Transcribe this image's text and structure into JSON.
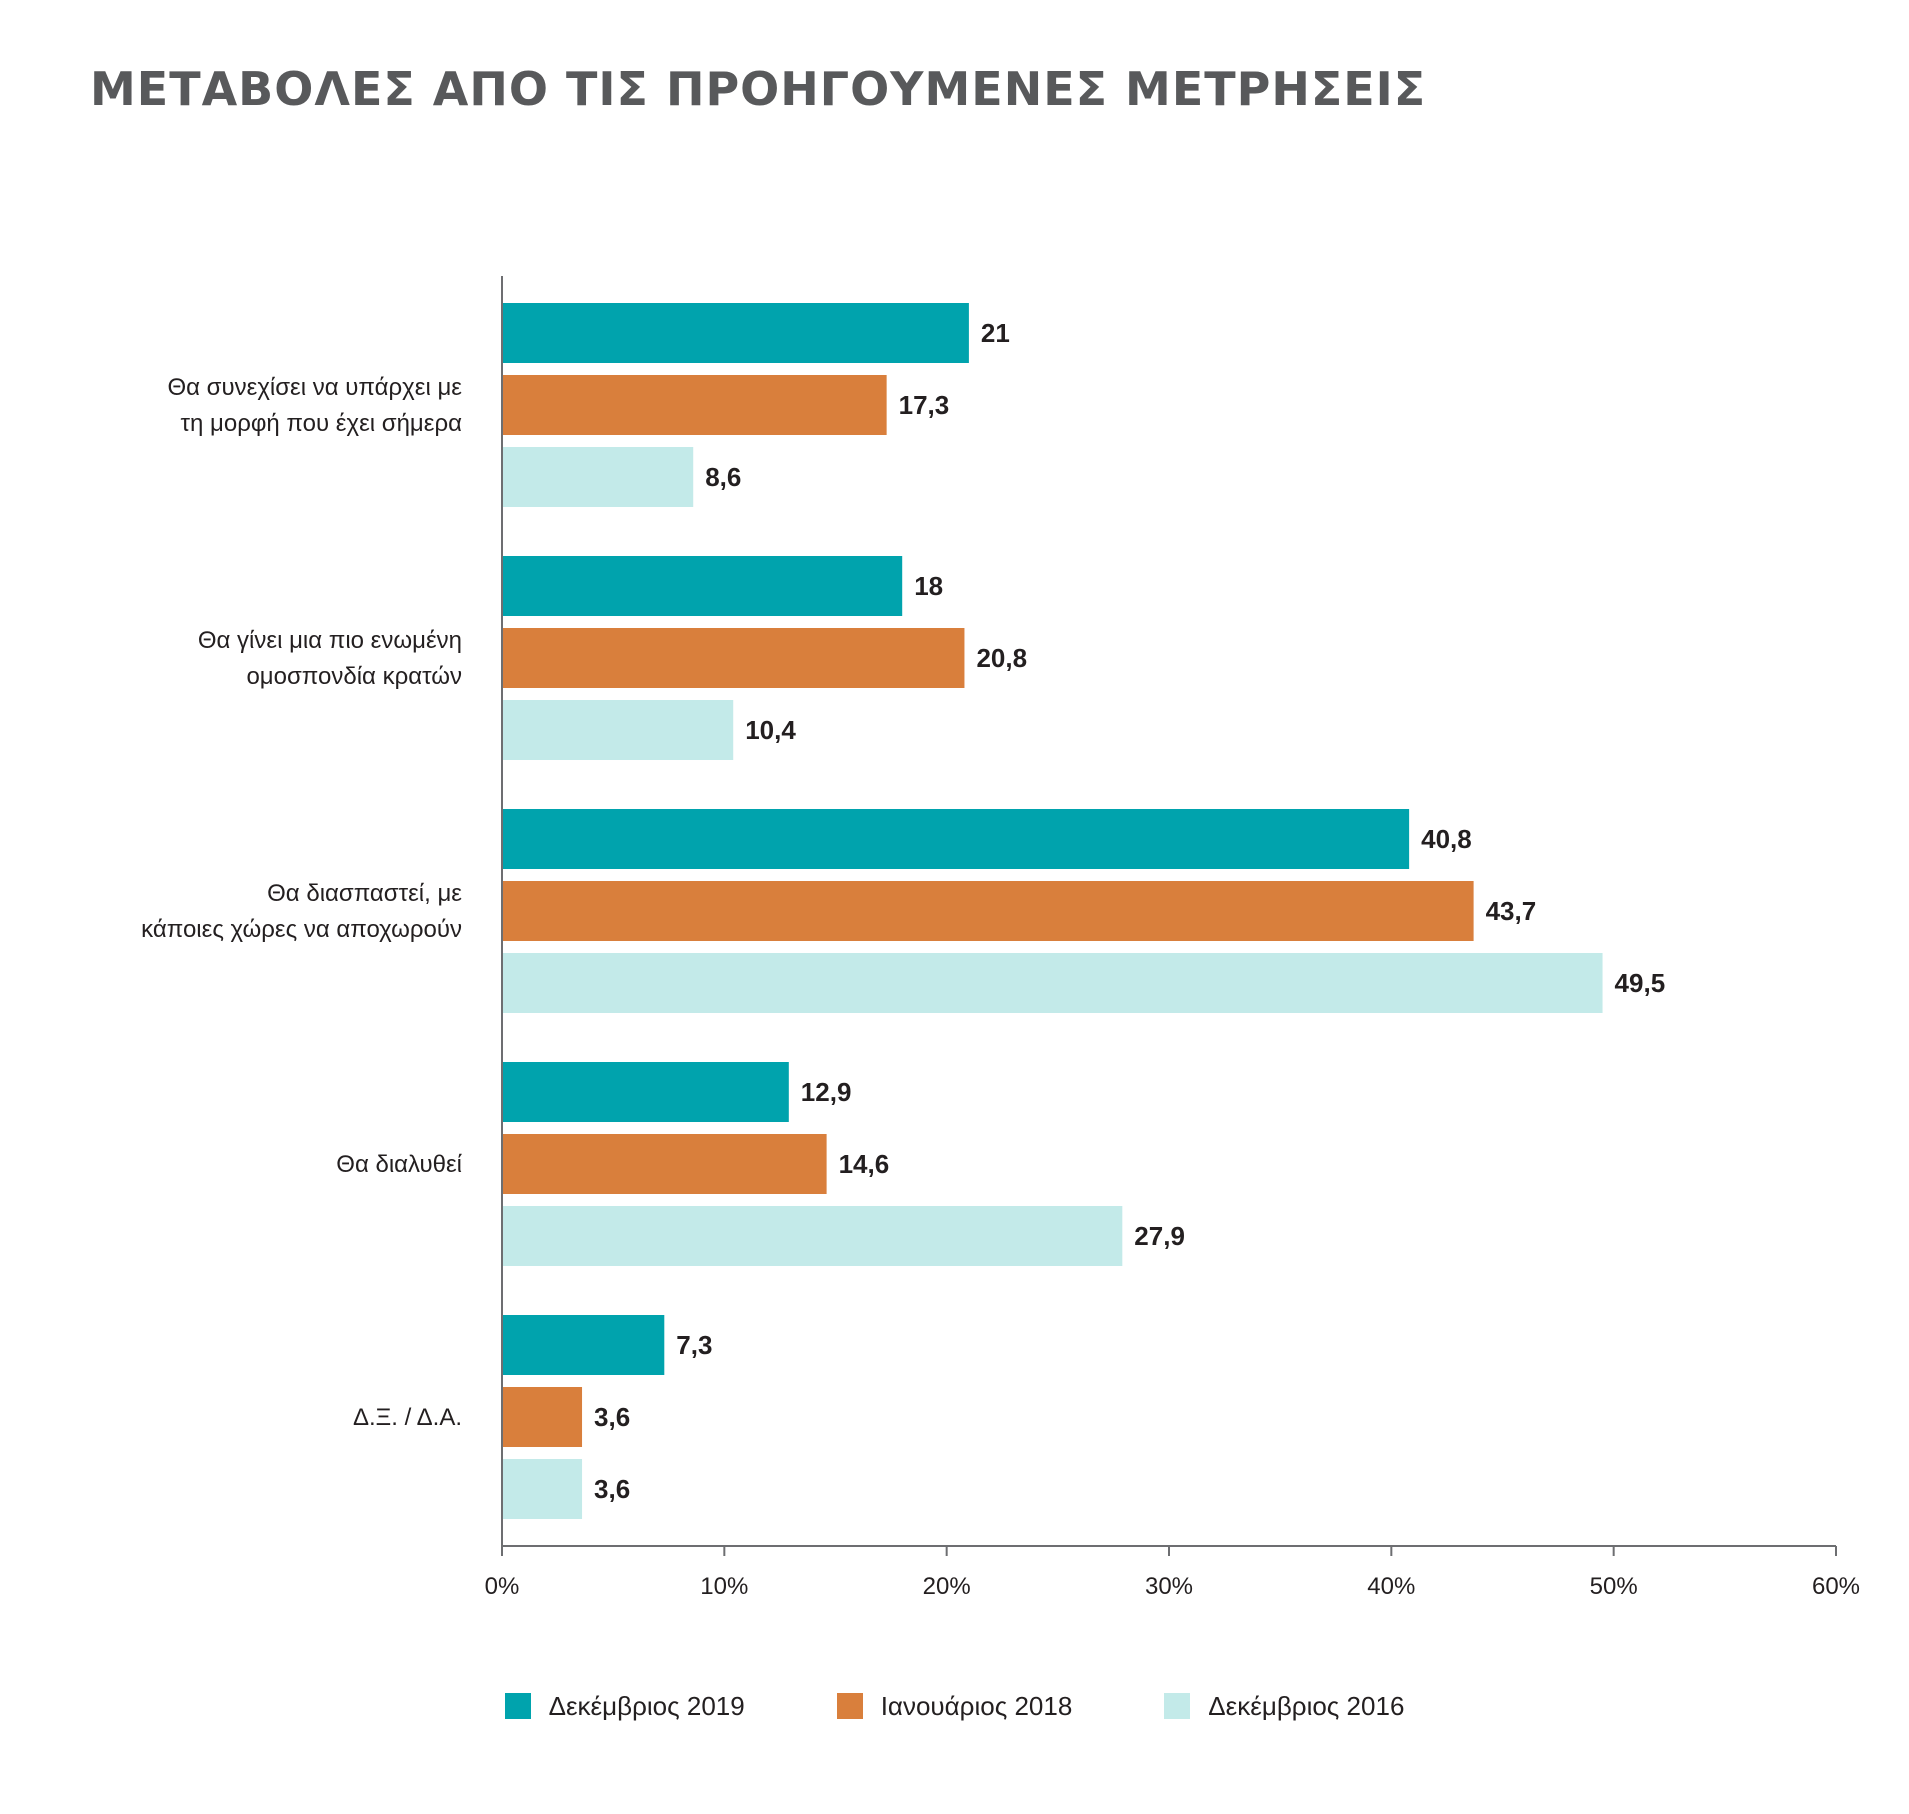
{
  "title": "ΜΕΤΑΒΟΛΕΣ ΑΠΟ ΤΙΣ ΠΡΟΗΓΟΥΜΕΝΕΣ ΜΕΤΡΗΣΕΙΣ",
  "chart_data": {
    "type": "bar",
    "orientation": "horizontal",
    "title": "ΜΕΤΑΒΟΛΕΣ ΑΠΟ ΤΙΣ ΠΡΟΗΓΟΥΜΕΝΕΣ ΜΕΤΡΗΣΕΙΣ",
    "categories": [
      [
        "Θα συνεχίσει να υπάρχει με",
        "τη μορφή που έχει σήμερα"
      ],
      [
        "Θα γίνει μια πιο ενωμένη",
        "ομοσπονδία κρατών"
      ],
      [
        "Θα διασπαστεί, με",
        "κάποιες χώρες να αποχωρούν"
      ],
      [
        "Θα διαλυθεί"
      ],
      [
        "Δ.Ξ. / Δ.Α."
      ]
    ],
    "series": [
      {
        "name": "Δεκέμβριος 2019",
        "color": "#00a3ad",
        "values": [
          21,
          18,
          40.8,
          12.9,
          7.3
        ],
        "labels": [
          "21",
          "18",
          "40,8",
          "12,9",
          "7,3"
        ]
      },
      {
        "name": "Ιανουάριος 2018",
        "color": "#d97f3c",
        "values": [
          17.3,
          20.8,
          43.7,
          14.6,
          3.6
        ],
        "labels": [
          "17,3",
          "20,8",
          "43,7",
          "14,6",
          "3,6"
        ]
      },
      {
        "name": "Δεκέμβριος 2016",
        "color": "#c3eae9",
        "values": [
          8.6,
          10.4,
          49.5,
          27.9,
          3.6
        ],
        "labels": [
          "8,6",
          "10,4",
          "49,5",
          "27,9",
          "3,6"
        ]
      }
    ],
    "xlim": [
      0,
      60
    ],
    "xticks": [
      0,
      10,
      20,
      30,
      40,
      50,
      60
    ],
    "xtick_labels": [
      "0%",
      "10%",
      "20%",
      "30%",
      "40%",
      "50%",
      "60%"
    ],
    "grid": false,
    "legend_position": "bottom-center"
  }
}
